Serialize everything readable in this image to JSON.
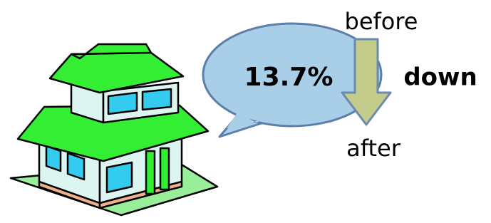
{
  "labels": {
    "before": "before",
    "change": "13.7%",
    "direction": "down",
    "after": "after"
  }
}
